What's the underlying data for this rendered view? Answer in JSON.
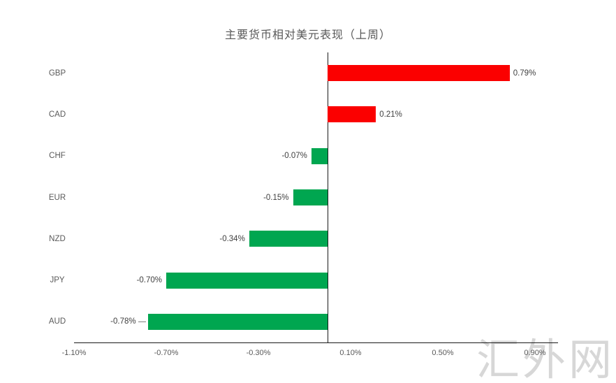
{
  "title": "主要货币相对美元表现（上周）",
  "watermark": "汇外网",
  "chart_data": {
    "type": "bar",
    "orientation": "horizontal",
    "title": "主要货币相对美元表现（上周）",
    "categories": [
      "GBP",
      "CAD",
      "CHF",
      "EUR",
      "NZD",
      "JPY",
      "AUD"
    ],
    "values": [
      0.79,
      0.21,
      -0.07,
      -0.15,
      -0.34,
      -0.7,
      -0.78
    ],
    "value_labels": [
      "0.79%",
      "0.21%",
      "-0.07%",
      "-0.15%",
      "-0.34%",
      "-0.70%",
      "-0.78%"
    ],
    "xlabel": "",
    "ylabel": "",
    "xlim": [
      -1.1,
      1.0
    ],
    "x_ticks": [
      "-1.10%",
      "-0.70%",
      "-0.30%",
      "0.10%",
      "0.50%",
      "0.90%"
    ],
    "x_tick_values": [
      -1.1,
      -0.7,
      -0.3,
      0.1,
      0.5,
      0.9
    ],
    "grid": false,
    "legend": false,
    "positive_color": "#fb0000",
    "negative_color": "#00a650",
    "leader_line_category": "AUD"
  }
}
